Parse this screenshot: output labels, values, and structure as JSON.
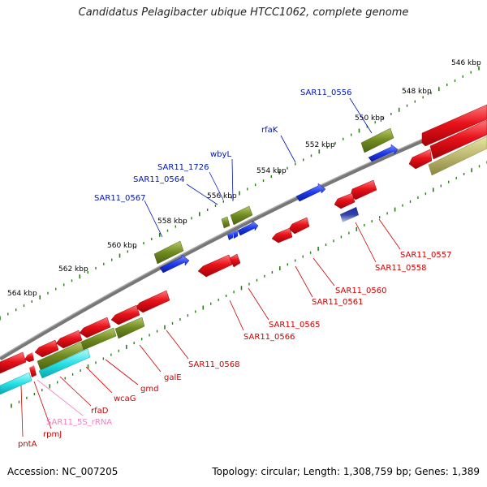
{
  "title": "Candidatus Pelagibacter ubique HTCC1062, complete genome",
  "accession": "Accession: NC_007205",
  "summary": "Topology: circular; Length: 1,308,759 bp; Genes: 1,389",
  "colors": {
    "cds": "#e8121a",
    "gene": "#6f8a1f",
    "trna": "#1f3cf0",
    "rrna": "#28e0e6",
    "backbone": "#777777",
    "ruler": "#2a7d14",
    "plus_label": "#0014b4",
    "minus_label": "#cc0000",
    "rrna_label": "#f080c0"
  },
  "ruler_labels": [
    "546 kbp",
    "548 kbp",
    "550 kbp",
    "552 kbp",
    "554 kbp",
    "556 kbp",
    "558 kbp",
    "560 kbp",
    "562 kbp",
    "564 kbp"
  ],
  "plus_labels": [
    "SAR11_0556",
    "rfaK",
    "wbyL",
    "SAR11_1726",
    "SAR11_0564",
    "SAR11_0567"
  ],
  "minus_labels": [
    "SAR11_0557",
    "SAR11_0558",
    "SAR11_0560",
    "SAR11_0561",
    "SAR11_0565",
    "SAR11_0566",
    "SAR11_0568",
    "galE",
    "gmd",
    "wcaG",
    "rfaD",
    "rpmJ",
    "SAR11_5S_rRNA",
    "pntA"
  ]
}
